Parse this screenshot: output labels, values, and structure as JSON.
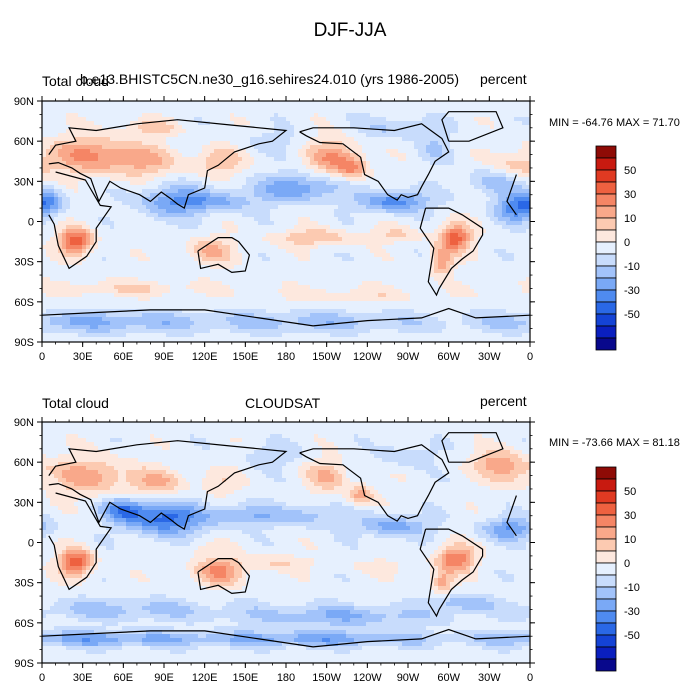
{
  "title": "DJF-JJA",
  "palette": [
    "#08088c",
    "#0a1fbf",
    "#1443d6",
    "#2a68e6",
    "#4f8bf0",
    "#7aa9f6",
    "#a2c3fa",
    "#c8dcfc",
    "#e6f0fe",
    "#fde8de",
    "#fccab1",
    "#f9a88a",
    "#f58565",
    "#ee6140",
    "#e03a22",
    "#c81a10",
    "#8e0b06"
  ],
  "lon_tick_labels": [
    "0",
    "30E",
    "60E",
    "90E",
    "120E",
    "150E",
    "180",
    "150W",
    "120W",
    "90W",
    "60W",
    "30W",
    "0"
  ],
  "lat_tick_labels": [
    "90N",
    "60N",
    "30N",
    "0",
    "30S",
    "60S",
    "90S"
  ],
  "legend_labels": [
    "50",
    "30",
    "10",
    "0",
    "-10",
    "-30",
    "-50"
  ],
  "panels": [
    {
      "left_label": "Total cloud",
      "center_label": "b.e13.BHISTC5CN.ne30_g16.sehires24.010 (yrs 1986-2005)",
      "right_label": "percent",
      "minmax": "MIN = -64.76 MAX =  71.70",
      "min": -64.76,
      "max": 71.7
    },
    {
      "left_label": "Total cloud",
      "center_label": "CLOUDSAT",
      "right_label": "percent",
      "minmax": "MIN = -73.66 MAX =  81.18",
      "min": -73.66,
      "max": 81.18
    }
  ]
}
